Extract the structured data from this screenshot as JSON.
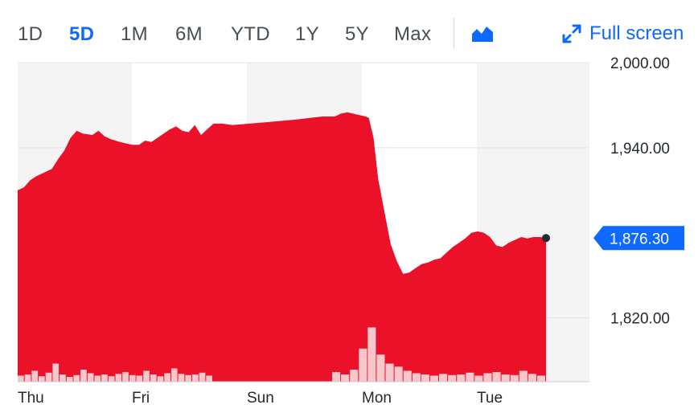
{
  "range_tabs": [
    {
      "label": "1D",
      "active": false
    },
    {
      "label": "5D",
      "active": true
    },
    {
      "label": "1M",
      "active": false
    },
    {
      "label": "6M",
      "active": false
    },
    {
      "label": "YTD",
      "active": false
    },
    {
      "label": "1Y",
      "active": false
    },
    {
      "label": "5Y",
      "active": false
    },
    {
      "label": "Max",
      "active": false
    }
  ],
  "chart_type_icon": "area-chart-icon",
  "fullscreen": {
    "label": "Full screen",
    "icon": "expand-arrows-icon"
  },
  "colors": {
    "accent": "#0f69ff",
    "area_fill": "#eb1128",
    "volume_fill": "#f7c7cc",
    "price_badge": "#0f69ff",
    "band_shade": "#f4f4f5"
  },
  "chart_data": {
    "type": "area",
    "y_ticks": [
      "2,000.00",
      "1,940.00",
      "1,820.00"
    ],
    "y_tick_values": [
      2000,
      1940,
      1820
    ],
    "ylim": [
      1775,
      2000
    ],
    "x_labels": [
      "Thu",
      "Fri",
      "Sun",
      "Mon",
      "Tue"
    ],
    "current_price": "1,876.30",
    "current_value": 1876.3,
    "series": [
      {
        "values": [
          [
            0.0,
            1910
          ],
          [
            0.2,
            1912
          ],
          [
            0.4,
            1917
          ],
          [
            0.6,
            1920
          ],
          [
            0.9,
            1923
          ],
          [
            1.1,
            1925
          ],
          [
            1.3,
            1932
          ],
          [
            1.5,
            1938
          ],
          [
            1.7,
            1947
          ],
          [
            1.9,
            1952
          ],
          [
            2.1,
            1950
          ],
          [
            2.4,
            1949
          ],
          [
            2.6,
            1952
          ],
          [
            2.8,
            1948
          ],
          [
            3.0,
            1946
          ],
          [
            3.3,
            1944
          ],
          [
            3.5,
            1943
          ],
          [
            3.7,
            1942
          ],
          [
            3.9,
            1942
          ],
          [
            4.1,
            1945
          ],
          [
            4.3,
            1944
          ],
          [
            4.5,
            1947
          ],
          [
            4.7,
            1950
          ],
          [
            4.9,
            1953
          ],
          [
            5.1,
            1955
          ],
          [
            5.3,
            1952
          ],
          [
            5.5,
            1951
          ],
          [
            5.7,
            1956
          ],
          [
            5.9,
            1949
          ],
          [
            6.1,
            1953
          ],
          [
            6.3,
            1957
          ],
          [
            6.6,
            1957
          ],
          [
            6.9,
            1956
          ],
          [
            8.0,
            1958
          ],
          [
            9.0,
            1960
          ],
          [
            9.8,
            1962
          ],
          [
            10.0,
            1962
          ],
          [
            10.2,
            1962
          ],
          [
            10.4,
            1964
          ],
          [
            10.6,
            1965
          ],
          [
            10.8,
            1964
          ],
          [
            11.0,
            1963
          ],
          [
            11.2,
            1962
          ],
          [
            11.3,
            1961
          ],
          [
            11.45,
            1947
          ],
          [
            11.6,
            1918
          ],
          [
            11.8,
            1895
          ],
          [
            12.0,
            1872
          ],
          [
            12.2,
            1860
          ],
          [
            12.4,
            1851
          ],
          [
            12.6,
            1852
          ],
          [
            12.8,
            1855
          ],
          [
            13.0,
            1858
          ],
          [
            13.2,
            1859
          ],
          [
            13.4,
            1861
          ],
          [
            13.6,
            1862
          ],
          [
            13.8,
            1866
          ],
          [
            14.0,
            1870
          ],
          [
            14.2,
            1873
          ],
          [
            14.4,
            1876
          ],
          [
            14.6,
            1880
          ],
          [
            14.8,
            1881
          ],
          [
            15.0,
            1880
          ],
          [
            15.2,
            1877
          ],
          [
            15.4,
            1871
          ],
          [
            15.6,
            1870
          ],
          [
            15.8,
            1873
          ],
          [
            16.0,
            1875
          ],
          [
            16.2,
            1877
          ],
          [
            16.4,
            1876
          ],
          [
            16.6,
            1877
          ],
          [
            16.8,
            1877
          ],
          [
            17.0,
            1876.3
          ]
        ]
      }
    ],
    "volume": [
      0.1,
      0.12,
      0.18,
      0.09,
      0.15,
      0.3,
      0.12,
      0.08,
      0.11,
      0.2,
      0.14,
      0.1,
      0.12,
      0.09,
      0.13,
      0.16,
      0.11,
      0.1,
      0.18,
      0.12,
      0.09,
      0.14,
      0.22,
      0.13,
      0.11,
      0.12,
      0.15,
      0.1,
      0.16,
      0.12,
      0.2,
      0.55,
      0.9,
      0.45,
      0.3,
      0.25,
      0.18,
      0.14,
      0.12,
      0.1,
      0.13,
      0.11,
      0.12,
      0.15,
      0.1,
      0.14,
      0.16,
      0.12,
      0.11,
      0.18,
      0.13,
      0.1
    ]
  }
}
